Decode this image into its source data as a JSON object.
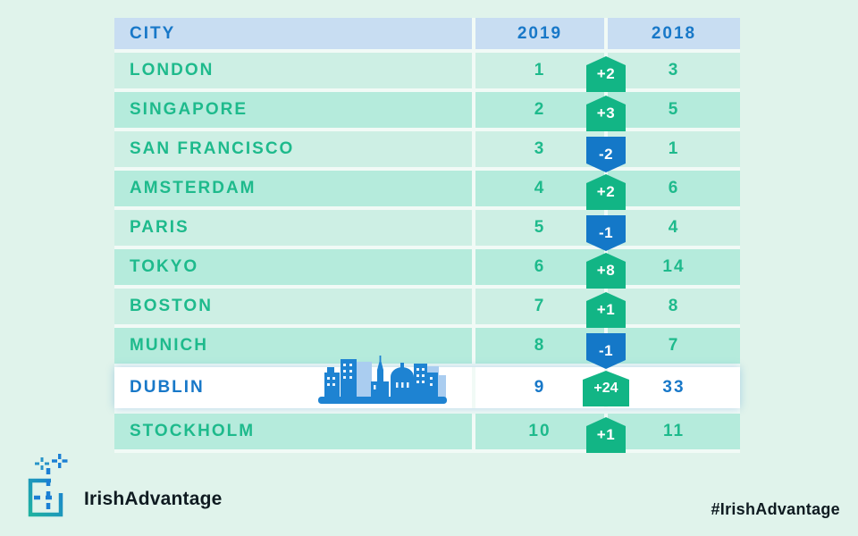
{
  "table": {
    "columns": {
      "city": "CITY",
      "y2019": "2019",
      "y2018": "2018"
    },
    "rows": [
      {
        "city": "LONDON",
        "rank2019": "1",
        "change": "+2",
        "rank2018": "3",
        "direction": "up",
        "highlight": false
      },
      {
        "city": "SINGAPORE",
        "rank2019": "2",
        "change": "+3",
        "rank2018": "5",
        "direction": "up",
        "highlight": false
      },
      {
        "city": "SAN FRANCISCO",
        "rank2019": "3",
        "change": "-2",
        "rank2018": "1",
        "direction": "down",
        "highlight": false
      },
      {
        "city": "AMSTERDAM",
        "rank2019": "4",
        "change": "+2",
        "rank2018": "6",
        "direction": "up",
        "highlight": false
      },
      {
        "city": "PARIS",
        "rank2019": "5",
        "change": "-1",
        "rank2018": "4",
        "direction": "down",
        "highlight": false
      },
      {
        "city": "TOKYO",
        "rank2019": "6",
        "change": "+8",
        "rank2018": "14",
        "direction": "up",
        "highlight": false
      },
      {
        "city": "BOSTON",
        "rank2019": "7",
        "change": "+1",
        "rank2018": "8",
        "direction": "up",
        "highlight": false
      },
      {
        "city": "MUNICH",
        "rank2019": "8",
        "change": "-1",
        "rank2018": "7",
        "direction": "down",
        "highlight": false
      },
      {
        "city": "DUBLIN",
        "rank2019": "9",
        "change": "+24",
        "rank2018": "33",
        "direction": "up",
        "highlight": true
      },
      {
        "city": "STOCKHOLM",
        "rank2019": "10",
        "change": "+1",
        "rank2018": "11",
        "direction": "up",
        "highlight": false
      }
    ]
  },
  "branding": {
    "logo_text": "IrishAdvantage",
    "hashtag": "#IrishAdvantage"
  },
  "icons": {
    "dublin_row": "city-skyline-icon",
    "logo": "dashed-square-sparkles-icon",
    "badge_up": "pentagon-up-badge",
    "badge_down": "pentagon-down-badge"
  },
  "colors": {
    "page_background": "#e0f3eb",
    "header_background": "#c8ddf2",
    "row_light": "#cdefe4",
    "row_dark": "#b5ebdc",
    "row_highlight": "#ffffff",
    "text_green": "#1eba8c",
    "text_blue": "#1878c8",
    "badge_positive": "#12b585",
    "badge_negative": "#1478c8",
    "skyline_blue": "#1e83d2",
    "skyline_light_blue": "#aacdf0",
    "footer_text": "#0f1b21"
  }
}
